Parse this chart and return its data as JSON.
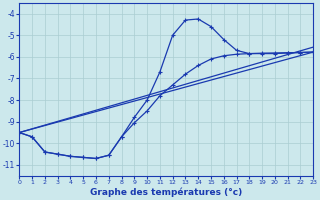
{
  "background_color": "#cce8ec",
  "grid_color": "#aacdd2",
  "line_color": "#1a3ab0",
  "xlabel": "Graphe des températures (°c)",
  "xlim": [
    0,
    23
  ],
  "ylim": [
    -11.5,
    -3.5
  ],
  "yticks": [
    -11,
    -10,
    -9,
    -8,
    -7,
    -6,
    -5,
    -4
  ],
  "xticks": [
    0,
    1,
    2,
    3,
    4,
    5,
    6,
    7,
    8,
    9,
    10,
    11,
    12,
    13,
    14,
    15,
    16,
    17,
    18,
    19,
    20,
    21,
    22,
    23
  ],
  "curve_peaked_x": [
    0,
    1,
    2,
    3,
    4,
    5,
    6,
    7,
    8,
    9,
    10,
    11,
    12,
    13,
    14,
    15,
    16,
    17,
    18,
    19,
    20,
    21,
    22,
    23
  ],
  "curve_peaked_y": [
    -9.5,
    -9.7,
    -10.4,
    -10.5,
    -10.6,
    -10.65,
    -10.7,
    -10.55,
    -9.7,
    -8.8,
    -8.0,
    -6.7,
    -5.0,
    -4.3,
    -4.25,
    -4.6,
    -5.2,
    -5.7,
    -5.85,
    -5.85,
    -5.85,
    -5.82,
    -5.8,
    -5.78
  ],
  "curve_scurve_x": [
    0,
    1,
    2,
    3,
    4,
    5,
    6,
    7,
    8,
    9,
    10,
    11,
    12,
    13,
    14,
    15,
    16,
    17,
    18,
    19,
    20,
    21,
    22,
    23
  ],
  "curve_scurve_y": [
    -9.5,
    -9.7,
    -10.4,
    -10.5,
    -10.6,
    -10.65,
    -10.7,
    -10.55,
    -9.7,
    -9.05,
    -8.5,
    -7.8,
    -7.3,
    -6.8,
    -6.4,
    -6.1,
    -5.95,
    -5.88,
    -5.85,
    -5.83,
    -5.82,
    -5.81,
    -5.8,
    -5.78
  ],
  "line1_x": [
    0,
    23
  ],
  "line1_y": [
    -9.5,
    -5.78
  ],
  "line2_x": [
    0,
    23
  ],
  "line2_y": [
    -9.5,
    -5.55
  ]
}
